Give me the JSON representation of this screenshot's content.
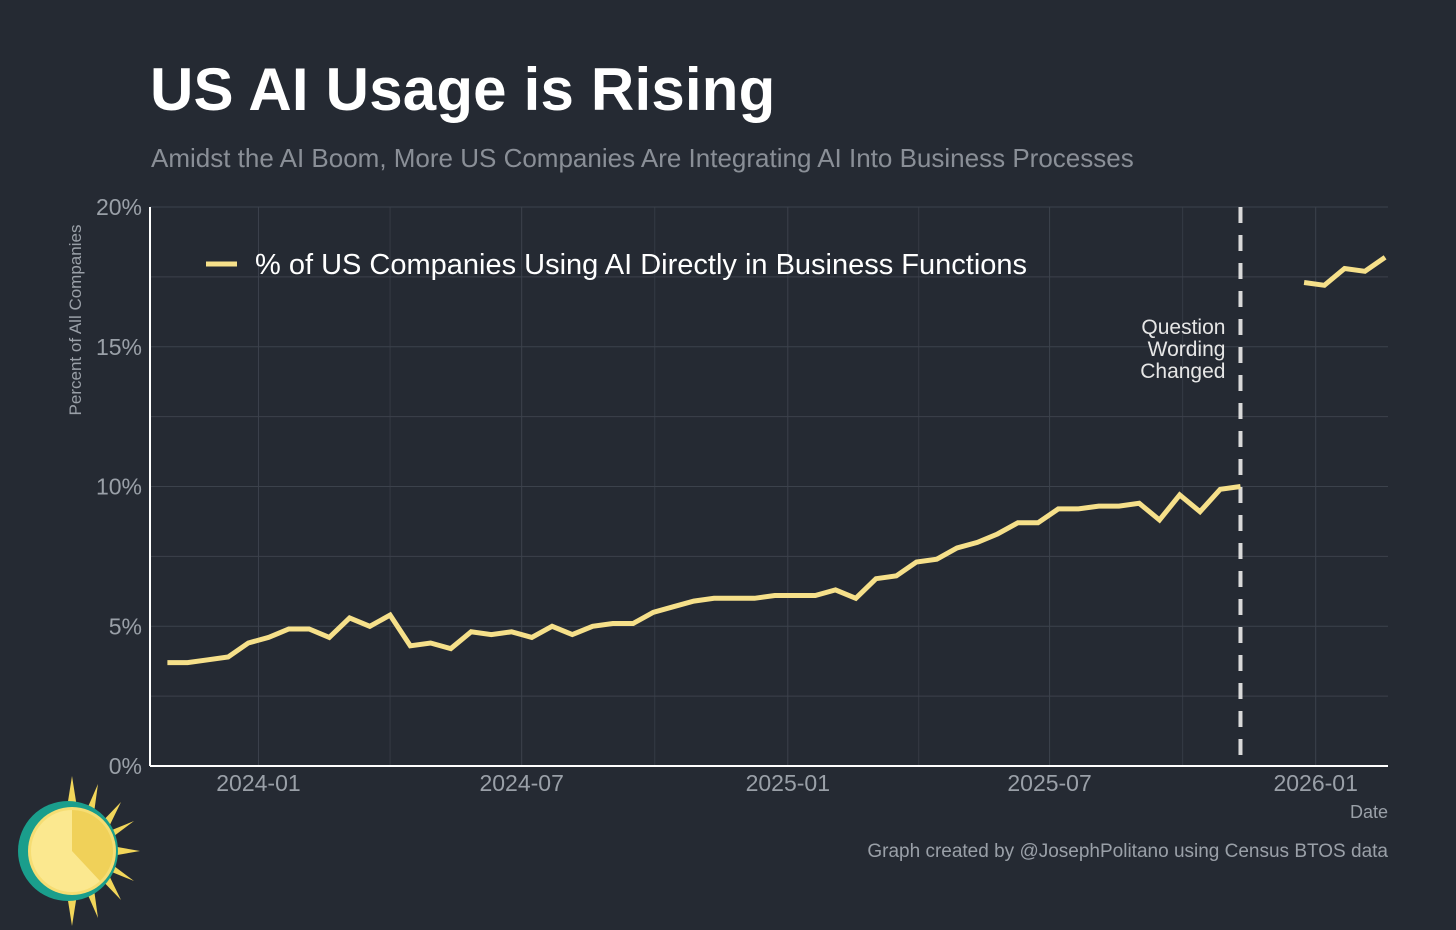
{
  "title": "US AI Usage is Rising",
  "subtitle": "Amidst the AI Boom, More US Companies Are Integrating AI Into Business Processes",
  "footer": "Graph created by @JosephPolitano using Census BTOS data",
  "colors": {
    "background": "#252a33",
    "line": "#f6e08a",
    "grid": "#3c424c",
    "axis": "#ffffff",
    "tick_text": "#9aa0a8"
  },
  "logo": {
    "icon": "sun-logo-icon"
  },
  "chart_data": {
    "type": "line",
    "xlabel": "Date",
    "ylabel": "Percent of All Companies",
    "ylim": [
      0,
      20
    ],
    "xlim": [
      "2023-10-18",
      "2026-02-20"
    ],
    "grid": true,
    "legend": {
      "position": "top-left"
    },
    "y_ticks": [
      {
        "value": 0,
        "label": "0%"
      },
      {
        "value": 5,
        "label": "5%"
      },
      {
        "value": 10,
        "label": "10%"
      },
      {
        "value": 15,
        "label": "15%"
      },
      {
        "value": 20,
        "label": "20%"
      }
    ],
    "x_ticks": [
      {
        "value": "2024-01-01",
        "label": "2024-01"
      },
      {
        "value": "2024-07-01",
        "label": "2024-07"
      },
      {
        "value": "2025-01-01",
        "label": "2025-01"
      },
      {
        "value": "2025-07-01",
        "label": "2025-07"
      },
      {
        "value": "2026-01-01",
        "label": "2026-01"
      }
    ],
    "annotation": {
      "date": "2025-11-10",
      "lines": [
        "Question",
        "Wording",
        "Changed"
      ]
    },
    "series": [
      {
        "name": "% of US Companies Using AI Directly in Business Functions",
        "segments": [
          [
            [
              "2023-10-30",
              3.7
            ],
            [
              "2023-11-13",
              3.7
            ],
            [
              "2023-11-27",
              3.8
            ],
            [
              "2023-12-11",
              3.9
            ],
            [
              "2023-12-25",
              4.4
            ],
            [
              "2024-01-08",
              4.6
            ],
            [
              "2024-01-22",
              4.9
            ],
            [
              "2024-02-05",
              4.9
            ],
            [
              "2024-02-19",
              4.6
            ],
            [
              "2024-03-04",
              5.3
            ],
            [
              "2024-03-18",
              5.0
            ],
            [
              "2024-04-01",
              5.4
            ],
            [
              "2024-04-15",
              4.3
            ],
            [
              "2024-04-29",
              4.4
            ],
            [
              "2024-05-13",
              4.2
            ],
            [
              "2024-05-27",
              4.8
            ],
            [
              "2024-06-10",
              4.7
            ],
            [
              "2024-06-24",
              4.8
            ],
            [
              "2024-07-08",
              4.6
            ],
            [
              "2024-07-22",
              5.0
            ],
            [
              "2024-08-05",
              4.7
            ],
            [
              "2024-08-19",
              5.0
            ],
            [
              "2024-09-02",
              5.1
            ],
            [
              "2024-09-16",
              5.1
            ],
            [
              "2024-09-30",
              5.5
            ],
            [
              "2024-10-14",
              5.7
            ],
            [
              "2024-10-28",
              5.9
            ],
            [
              "2024-11-11",
              6.0
            ],
            [
              "2024-11-25",
              6.0
            ],
            [
              "2024-12-09",
              6.0
            ],
            [
              "2024-12-23",
              6.1
            ],
            [
              "2025-01-06",
              6.1
            ],
            [
              "2025-01-20",
              6.1
            ],
            [
              "2025-02-03",
              6.3
            ],
            [
              "2025-02-17",
              6.0
            ],
            [
              "2025-03-03",
              6.7
            ],
            [
              "2025-03-17",
              6.8
            ],
            [
              "2025-03-31",
              7.3
            ],
            [
              "2025-04-14",
              7.4
            ],
            [
              "2025-04-28",
              7.8
            ],
            [
              "2025-05-12",
              8.0
            ],
            [
              "2025-05-26",
              8.3
            ],
            [
              "2025-06-09",
              8.7
            ],
            [
              "2025-06-23",
              8.7
            ],
            [
              "2025-07-07",
              9.2
            ],
            [
              "2025-07-21",
              9.2
            ],
            [
              "2025-08-04",
              9.3
            ],
            [
              "2025-08-18",
              9.3
            ],
            [
              "2025-09-01",
              9.4
            ],
            [
              "2025-09-15",
              8.8
            ],
            [
              "2025-09-29",
              9.7
            ],
            [
              "2025-10-13",
              9.1
            ],
            [
              "2025-10-27",
              9.9
            ],
            [
              "2025-11-10",
              10.0
            ]
          ],
          [
            [
              "2025-12-24",
              17.3
            ],
            [
              "2026-01-07",
              17.2
            ],
            [
              "2026-01-21",
              17.8
            ],
            [
              "2026-02-04",
              17.7
            ],
            [
              "2026-02-18",
              18.2
            ]
          ]
        ]
      }
    ]
  }
}
